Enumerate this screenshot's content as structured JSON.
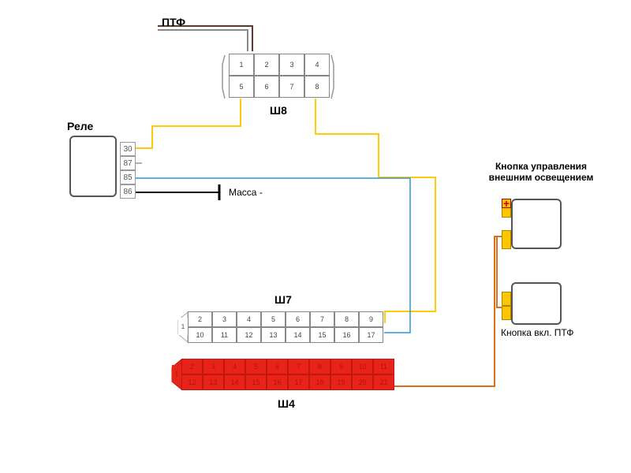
{
  "labels": {
    "ptf": "ПТФ",
    "relay": "Реле",
    "sh8": "Ш8",
    "sh7": "Ш7",
    "sh4": "Ш4",
    "mass": "Масса -",
    "control_button_title": "Кнопка управления\nвнешним освещением",
    "ptf_button": "Кнопка вкл. ПТФ",
    "plus": "+"
  },
  "relay_pins": [
    "30",
    "87",
    "85",
    "86"
  ],
  "sh8_pins_top": [
    "1",
    "2",
    "3",
    "4"
  ],
  "sh8_pins_bot": [
    "5",
    "6",
    "7",
    "8"
  ],
  "sh7_top": [
    "2",
    "3",
    "4",
    "5",
    "6",
    "7",
    "8",
    "9"
  ],
  "sh7_bot": [
    "10",
    "11",
    "12",
    "13",
    "14",
    "15",
    "16",
    "17"
  ],
  "sh7_left": "1",
  "sh4_top": [
    "2",
    "3",
    "4",
    "5",
    "6",
    "7",
    "8",
    "9",
    "10",
    "11"
  ],
  "sh4_bot": [
    "12",
    "13",
    "14",
    "15",
    "16",
    "17",
    "18",
    "19",
    "20",
    "21"
  ],
  "sh4_left": "1",
  "colors": {
    "yellow_wire": "#feca0b",
    "blue_wire": "#2898d8",
    "brown_wire": "#5a3a2a",
    "gray_wire": "#888888",
    "black_wire": "#000000",
    "orange_wire": "#d87018",
    "red_block": "#e8241a"
  }
}
